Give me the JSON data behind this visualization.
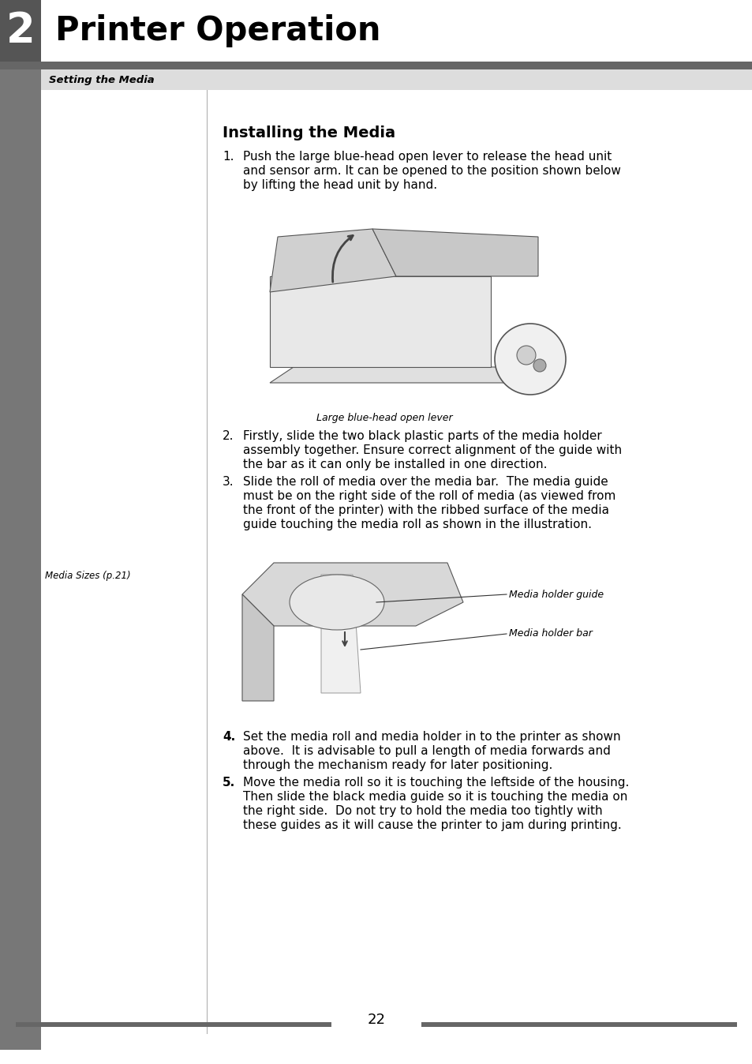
{
  "title_chapter_num": "2",
  "title_chapter_text": "Printer Operation",
  "section_title": "Setting the Media",
  "content_title": "Installing the Media",
  "page_number": "22",
  "gray_bar_color": "#666666",
  "section_bar_color": "#888888",
  "text_color": "#000000",
  "white": "#ffffff",
  "step1_text_line1": "Push the large blue-head open lever to release the head unit",
  "step1_text_line2": "and sensor arm. It can be opened to the position shown below",
  "step1_text_line3": "by lifting the head unit by hand.",
  "step2_text_line1": "Firstly, slide the two black plastic parts of the media holder",
  "step2_text_line2": "assembly together. Ensure correct alignment of the guide with",
  "step2_text_line3": "the bar as it can only be installed in one direction.",
  "step3_text_line1": "Slide the roll of media over the media bar.  The media guide",
  "step3_text_line2": "must be on the right side of the roll of media (as viewed from",
  "step3_text_line3": "the front of the printer) with the ribbed surface of the media",
  "step3_text_line4": "guide touching the media roll as shown in the illustration.",
  "step4_text_line1": "Set the media roll and media holder in to the printer as shown",
  "step4_text_line2": "above.  It is advisable to pull a length of media forwards and",
  "step4_text_line3": "through the mechanism ready for later positioning.",
  "step5_text_line1": "Move the media roll so it is touching the leftside of the housing.",
  "step5_text_line2": "Then slide the black media guide so it is touching the media on",
  "step5_text_line3": "the right side.  Do not try to hold the media too tightly with",
  "step5_text_line4": "these guides as it will cause the printer to jam during printing.",
  "caption1": "Large blue-head open lever",
  "caption2_label1": "Media holder guide",
  "caption2_label2": "Media holder bar",
  "sidebar_label_line1": "Media Sizes (p.21)"
}
